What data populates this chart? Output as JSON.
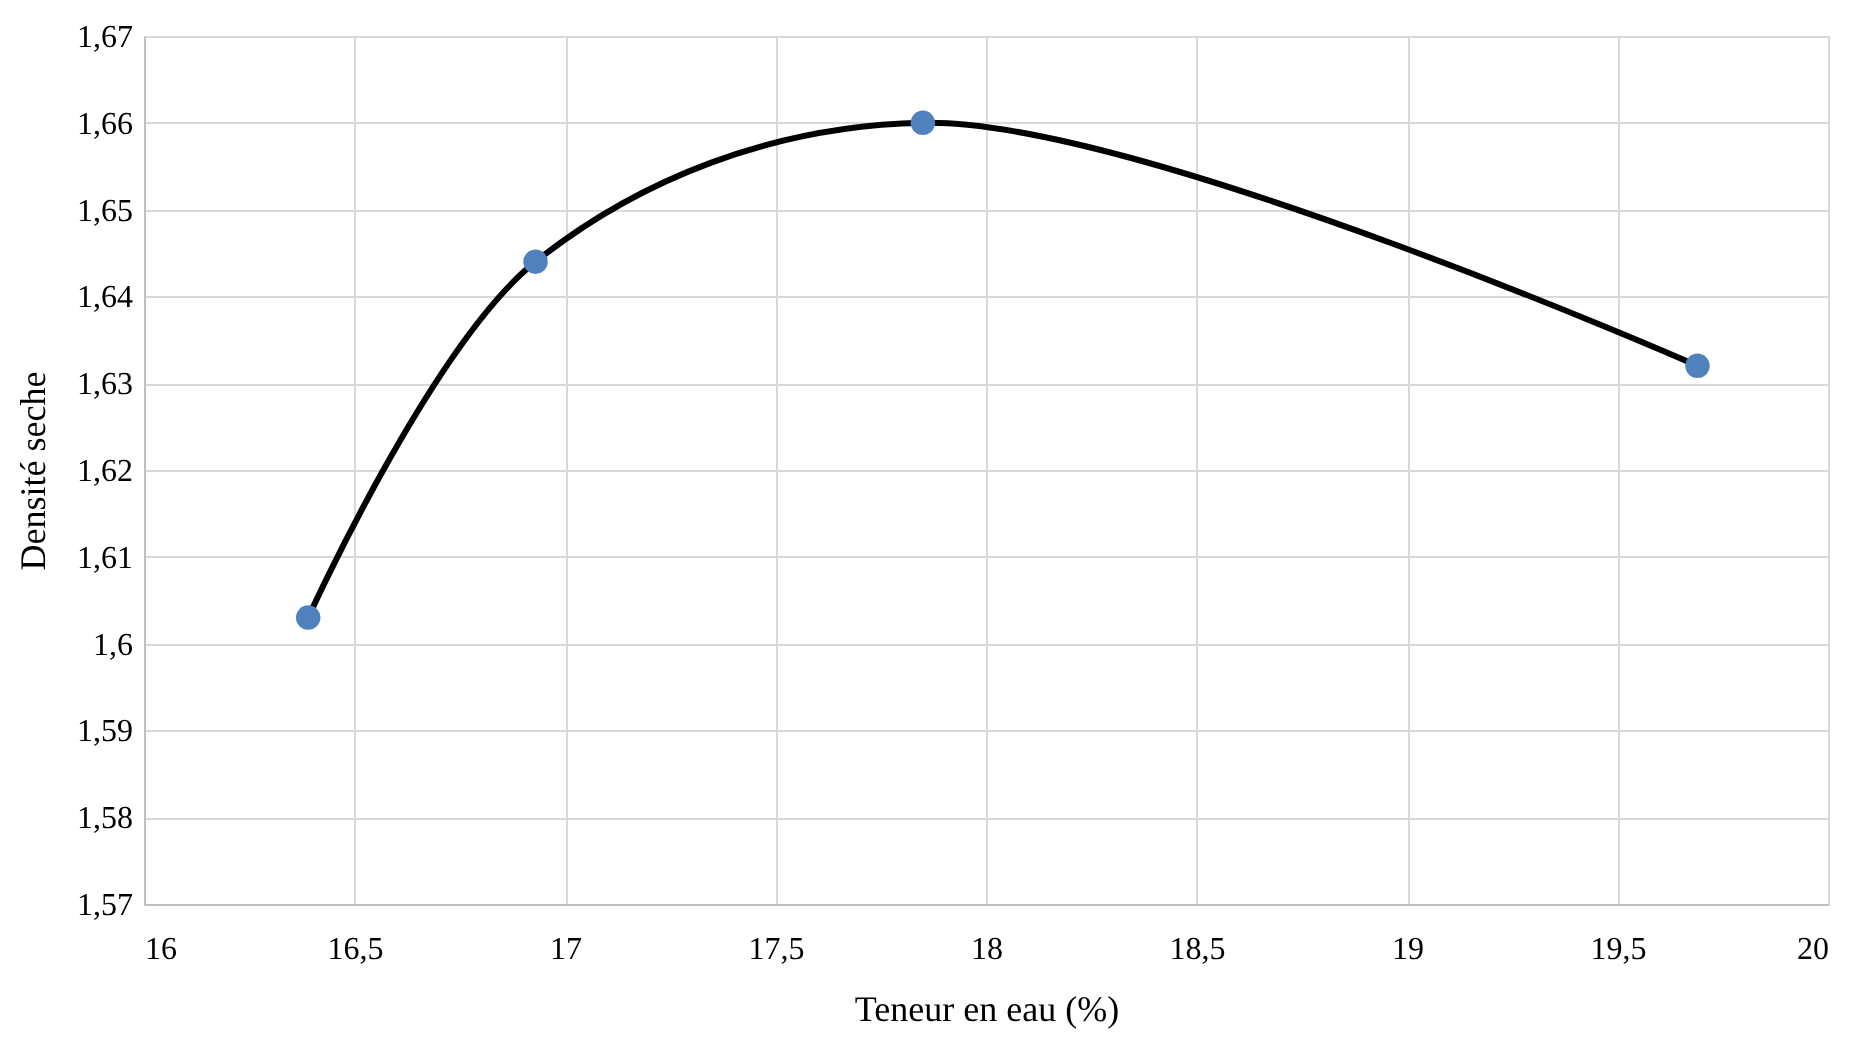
{
  "chart_data": {
    "type": "line",
    "xlabel": "Teneur en eau (%)",
    "ylabel": "Densité seche",
    "x": [
      16.39,
      16.93,
      17.85,
      19.69
    ],
    "series": [
      {
        "color": "#000000",
        "marker": "none",
        "line_style": "solid",
        "values": [
          1.603,
          1.644,
          1.66,
          1.632
        ]
      },
      {
        "type": "scatter",
        "color": "#4f81bd",
        "marker": "circle",
        "values": [
          1.603,
          1.644,
          1.66,
          1.632
        ]
      }
    ],
    "xlim": [
      16,
      20
    ],
    "xticks": [
      {
        "value": 16,
        "label": "16"
      },
      {
        "value": 16.5,
        "label": "16,5"
      },
      {
        "value": 17,
        "label": "17"
      },
      {
        "value": 17.5,
        "label": "17,5"
      },
      {
        "value": 18,
        "label": "18"
      },
      {
        "value": 18.5,
        "label": "18,5"
      },
      {
        "value": 19,
        "label": "19"
      },
      {
        "value": 19.5,
        "label": "19,5"
      },
      {
        "value": 20,
        "label": "20"
      }
    ],
    "ylim": [
      1.57,
      1.67
    ],
    "yticks": [
      {
        "value": 1.57,
        "label": "1,57"
      },
      {
        "value": 1.58,
        "label": "1,58"
      },
      {
        "value": 1.59,
        "label": "1,59"
      },
      {
        "value": 1.6,
        "label": "1,6"
      },
      {
        "value": 1.61,
        "label": "1,61"
      },
      {
        "value": 1.62,
        "label": "1,62"
      },
      {
        "value": 1.63,
        "label": "1,63"
      },
      {
        "value": 1.64,
        "label": "1,64"
      },
      {
        "value": 1.65,
        "label": "1,65"
      },
      {
        "value": 1.66,
        "label": "1,66"
      },
      {
        "value": 1.67,
        "label": "1,67"
      }
    ],
    "grid": true
  }
}
